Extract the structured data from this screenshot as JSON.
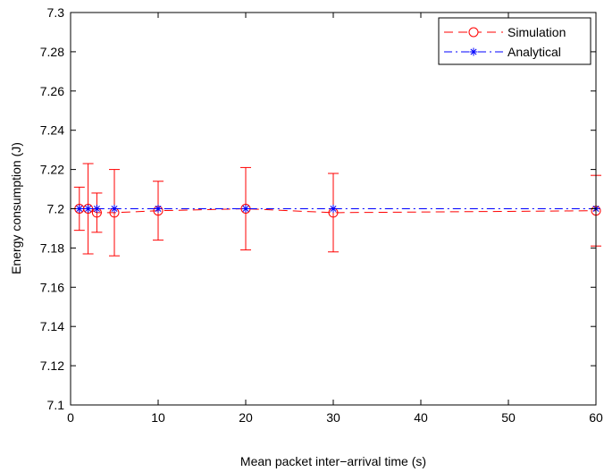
{
  "chart_data": {
    "type": "line",
    "title": "",
    "xlabel": "Mean packet inter−arrival time (s)",
    "ylabel": "Energy consumption (J)",
    "xlim": [
      0,
      60
    ],
    "ylim": [
      7.1,
      7.3
    ],
    "x_ticks": [
      0,
      10,
      20,
      30,
      40,
      50,
      60
    ],
    "y_ticks": [
      7.1,
      7.12,
      7.14,
      7.16,
      7.18,
      7.2,
      7.22,
      7.24,
      7.26,
      7.28,
      7.3
    ],
    "x_tick_labels": [
      "0",
      "10",
      "20",
      "30",
      "40",
      "50",
      "60"
    ],
    "y_tick_labels": [
      "7.1",
      "7.12",
      "7.14",
      "7.16",
      "7.18",
      "7.2",
      "7.22",
      "7.24",
      "7.26",
      "7.28",
      "7.3"
    ],
    "grid": false,
    "legend_position": "top-right",
    "x": [
      1,
      2,
      3,
      5,
      10,
      20,
      30,
      60
    ],
    "series": [
      {
        "name": "Simulation",
        "color": "#ff0000",
        "line_style": "dashed",
        "marker": "circle",
        "values": [
          7.2,
          7.2,
          7.198,
          7.198,
          7.199,
          7.2,
          7.198,
          7.199
        ],
        "error_lower": [
          7.189,
          7.177,
          7.188,
          7.176,
          7.184,
          7.179,
          7.178,
          7.181
        ],
        "error_upper": [
          7.211,
          7.223,
          7.208,
          7.22,
          7.214,
          7.221,
          7.218,
          7.217
        ]
      },
      {
        "name": "Analytical",
        "color": "#0000ff",
        "line_style": "dash-dot",
        "marker": "asterisk",
        "values": [
          7.2,
          7.2,
          7.2,
          7.2,
          7.2,
          7.2,
          7.2,
          7.2
        ]
      }
    ]
  }
}
